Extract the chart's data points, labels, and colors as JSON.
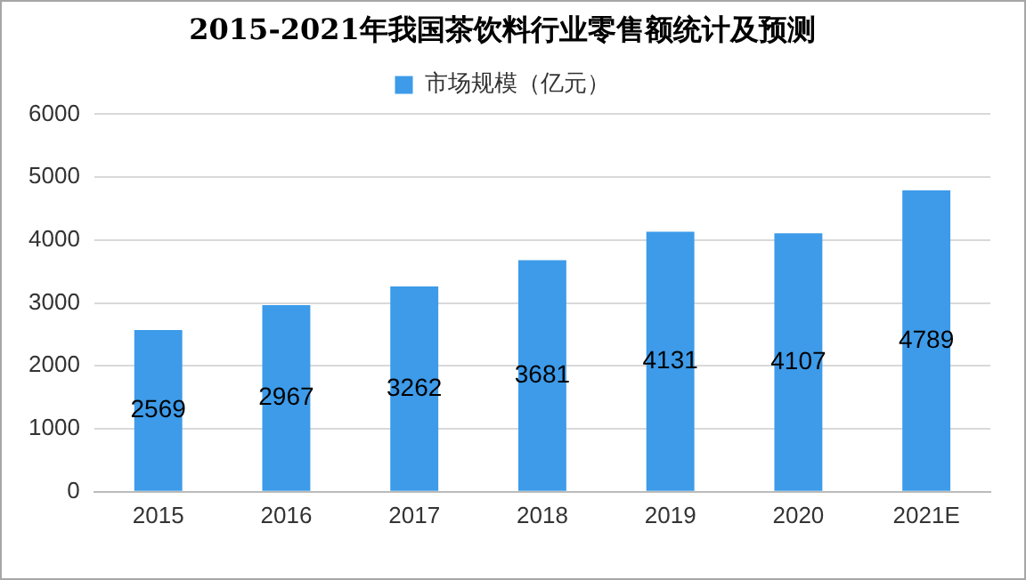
{
  "chart_data": {
    "type": "bar",
    "title": "2015-2021年我国茶饮料行业零售额统计及预测",
    "categories": [
      "2015",
      "2016",
      "2017",
      "2018",
      "2019",
      "2020",
      "2021E"
    ],
    "series": [
      {
        "name": "市场规模（亿元）",
        "color": "#3d9be9",
        "values": [
          2569,
          2967,
          3262,
          3681,
          4131,
          4107,
          4789
        ]
      }
    ],
    "ylim": [
      0,
      6000
    ],
    "yticks": [
      0,
      1000,
      2000,
      3000,
      4000,
      5000,
      6000
    ],
    "grid": "y",
    "legend": "top",
    "data_labels": true
  }
}
